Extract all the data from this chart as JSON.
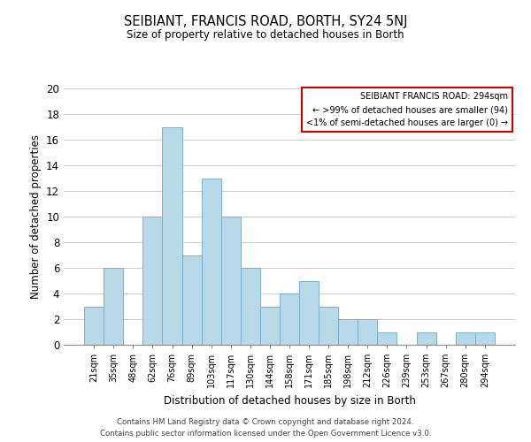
{
  "title": "SEIBIANT, FRANCIS ROAD, BORTH, SY24 5NJ",
  "subtitle": "Size of property relative to detached houses in Borth",
  "xlabel": "Distribution of detached houses by size in Borth",
  "ylabel": "Number of detached properties",
  "bar_color": "#b8d9e8",
  "bar_edge_color": "#7ab0cc",
  "categories": [
    "21sqm",
    "35sqm",
    "48sqm",
    "62sqm",
    "76sqm",
    "89sqm",
    "103sqm",
    "117sqm",
    "130sqm",
    "144sqm",
    "158sqm",
    "171sqm",
    "185sqm",
    "198sqm",
    "212sqm",
    "226sqm",
    "239sqm",
    "253sqm",
    "267sqm",
    "280sqm",
    "294sqm"
  ],
  "values": [
    3,
    6,
    0,
    10,
    17,
    7,
    13,
    10,
    6,
    3,
    4,
    5,
    3,
    2,
    2,
    1,
    0,
    1,
    0,
    1,
    1
  ],
  "ylim": [
    0,
    20
  ],
  "yticks": [
    0,
    2,
    4,
    6,
    8,
    10,
    12,
    14,
    16,
    18,
    20
  ],
  "legend_title": "SEIBIANT FRANCIS ROAD: 294sqm",
  "legend_line1": "← >99% of detached houses are smaller (94)",
  "legend_line2": "<1% of semi-detached houses are larger (0) →",
  "legend_box_color": "#ffffff",
  "legend_border_color": "#cc0000",
  "footer_line1": "Contains HM Land Registry data © Crown copyright and database right 2024.",
  "footer_line2": "Contains public sector information licensed under the Open Government Licence v3.0.",
  "background_color": "#ffffff",
  "grid_color": "#cccccc"
}
